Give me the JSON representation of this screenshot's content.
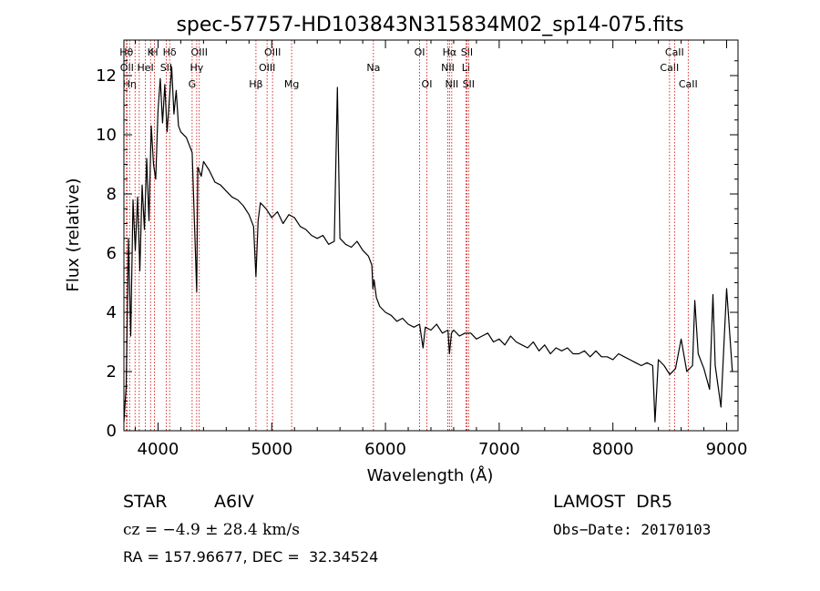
{
  "chart_data": {
    "type": "line",
    "title": "spec-57757-HD103843N315834M02_sp14-075.fits",
    "xlabel": "Wavelength (Å)",
    "ylabel": "Flux (relative)",
    "xlim": [
      3700,
      9100
    ],
    "ylim": [
      0,
      13.2
    ],
    "xticks": [
      4000,
      5000,
      6000,
      7000,
      8000,
      9000
    ],
    "yticks": [
      0,
      2,
      4,
      6,
      8,
      10,
      12
    ],
    "grid": false,
    "line_color": "#000000",
    "marker_color": "#cc0000",
    "series": [
      {
        "x": [
          3700,
          3720,
          3740,
          3760,
          3780,
          3800,
          3820,
          3840,
          3860,
          3880,
          3900,
          3920,
          3940,
          3960,
          3980,
          4000,
          4020,
          4040,
          4060,
          4080,
          4100,
          4120,
          4140,
          4160,
          4180,
          4200,
          4250,
          4300,
          4340,
          4350,
          4380,
          4400,
          4450,
          4500,
          4550,
          4600,
          4650,
          4700,
          4750,
          4800,
          4840,
          4861,
          4880,
          4900,
          4950,
          5000,
          5050,
          5100,
          5150,
          5200,
          5250,
          5300,
          5350,
          5400,
          5450,
          5500,
          5550,
          5577,
          5600,
          5650,
          5700,
          5750,
          5800,
          5850,
          5880,
          5890,
          5900,
          5920,
          5950,
          6000,
          6050,
          6100,
          6150,
          6200,
          6250,
          6300,
          6330,
          6350,
          6400,
          6450,
          6500,
          6550,
          6563,
          6580,
          6600,
          6650,
          6700,
          6750,
          6800,
          6850,
          6900,
          6950,
          7000,
          7050,
          7100,
          7150,
          7200,
          7250,
          7300,
          7350,
          7400,
          7450,
          7500,
          7550,
          7600,
          7650,
          7700,
          7750,
          7800,
          7850,
          7900,
          7950,
          8000,
          8050,
          8100,
          8150,
          8200,
          8250,
          8300,
          8350,
          8370,
          8400,
          8450,
          8500,
          8550,
          8600,
          8650,
          8700,
          8720,
          8750,
          8800,
          8850,
          8880,
          8900,
          8950,
          9000,
          9050
        ],
        "y": [
          0.3,
          1.5,
          6.5,
          3.2,
          7.8,
          6.1,
          7.9,
          5.4,
          8.3,
          6.8,
          9.2,
          7.1,
          10.3,
          9.0,
          8.5,
          10.8,
          11.9,
          10.4,
          11.7,
          10.1,
          11.2,
          12.3,
          10.7,
          11.5,
          10.3,
          10.1,
          9.9,
          9.4,
          4.7,
          8.9,
          8.6,
          9.1,
          8.8,
          8.4,
          8.3,
          8.1,
          7.9,
          7.8,
          7.6,
          7.3,
          6.9,
          5.2,
          7.1,
          7.7,
          7.5,
          7.2,
          7.4,
          7.0,
          7.3,
          7.2,
          6.9,
          6.8,
          6.6,
          6.5,
          6.6,
          6.3,
          6.4,
          11.6,
          6.5,
          6.3,
          6.2,
          6.4,
          6.1,
          5.9,
          5.6,
          4.8,
          5.1,
          4.5,
          4.2,
          4.0,
          3.9,
          3.7,
          3.8,
          3.6,
          3.5,
          3.6,
          2.8,
          3.5,
          3.4,
          3.6,
          3.3,
          3.4,
          2.6,
          3.3,
          3.4,
          3.2,
          3.3,
          3.3,
          3.1,
          3.2,
          3.3,
          3.0,
          3.1,
          2.9,
          3.2,
          3.0,
          2.9,
          2.8,
          3.0,
          2.7,
          2.9,
          2.6,
          2.8,
          2.7,
          2.8,
          2.6,
          2.6,
          2.7,
          2.5,
          2.7,
          2.5,
          2.5,
          2.4,
          2.6,
          2.5,
          2.4,
          2.3,
          2.2,
          2.3,
          2.2,
          0.3,
          2.4,
          2.2,
          1.9,
          2.1,
          3.1,
          2.0,
          2.2,
          4.4,
          2.6,
          2.1,
          1.4,
          4.6,
          2.2,
          0.8,
          4.8,
          2.0
        ]
      }
    ],
    "lines": [
      {
        "x": 3722,
        "label": "Hθ",
        "row": 1
      },
      {
        "x": 3727,
        "label": "OII",
        "row": 2
      },
      {
        "x": 3750,
        "label": "Hη",
        "row": 3
      },
      {
        "x": 3798,
        "label": "",
        "row": 0
      },
      {
        "x": 3835,
        "label": "",
        "row": 0
      },
      {
        "x": 3889,
        "label": "HeI",
        "row": 2
      },
      {
        "x": 3934,
        "label": "K",
        "row": 1
      },
      {
        "x": 3969,
        "label": "H",
        "row": 1
      },
      {
        "x": 4072,
        "label": "SII",
        "row": 2
      },
      {
        "x": 4102,
        "label": "Hδ",
        "row": 1
      },
      {
        "x": 4300,
        "label": "G",
        "row": 3
      },
      {
        "x": 4340,
        "label": "Hγ",
        "row": 2
      },
      {
        "x": 4363,
        "label": "OIII",
        "row": 1
      },
      {
        "x": 4861,
        "label": "Hβ",
        "row": 3
      },
      {
        "x": 4959,
        "label": "OIII",
        "row": 2
      },
      {
        "x": 5007,
        "label": "OIII",
        "row": 1
      },
      {
        "x": 5175,
        "label": "Mg",
        "row": 3
      },
      {
        "x": 5894,
        "label": "Na",
        "row": 2
      },
      {
        "x": 6300,
        "label": "OI",
        "row": 1
      },
      {
        "x": 6364,
        "label": "OI",
        "row": 3
      },
      {
        "x": 6548,
        "label": "NII",
        "row": 2
      },
      {
        "x": 6563,
        "label": "Hα",
        "row": 1
      },
      {
        "x": 6583,
        "label": "NII",
        "row": 3
      },
      {
        "x": 6707,
        "label": "Li",
        "row": 2
      },
      {
        "x": 6716,
        "label": "SII",
        "row": 1
      },
      {
        "x": 6731,
        "label": "SII",
        "row": 3
      },
      {
        "x": 8498,
        "label": "CaII",
        "row": 2
      },
      {
        "x": 8542,
        "label": "CaII",
        "row": 1
      },
      {
        "x": 8662,
        "label": "CaII",
        "row": 3
      }
    ]
  },
  "info": {
    "object_type": "STAR",
    "subclass": "A6IV",
    "survey": "LAMOST  DR5",
    "redshift": "cz = −4.9 ± 28.4 km/s",
    "obs_date": "Obs−Date: 20170103",
    "coords": "RA = 157.96677, DEC =  32.34524"
  }
}
